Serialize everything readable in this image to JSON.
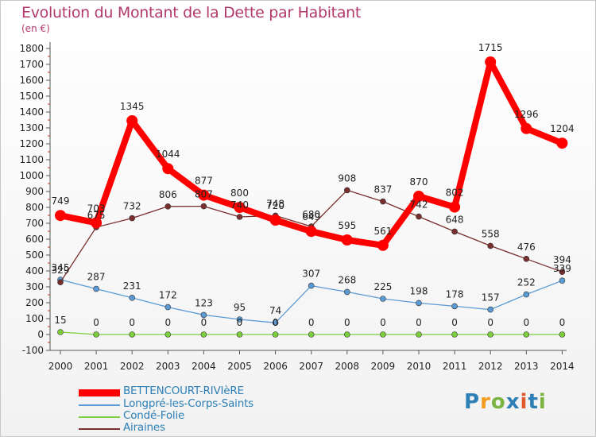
{
  "title": "Evolution du Montant de la Dette par Habitant",
  "subtitle": "(en €)",
  "logo_text": "Proxiti",
  "chart_data": {
    "type": "line",
    "title": "Evolution du Montant de la Dette par Habitant",
    "ylabel": "(en €)",
    "x": [
      "2000",
      "2001",
      "2002",
      "2003",
      "2004",
      "2005",
      "2006",
      "2007",
      "2008",
      "2009",
      "2010",
      "2011",
      "2012",
      "2013",
      "2014"
    ],
    "ylim": [
      -100,
      1800
    ],
    "yticks": [
      -100,
      0,
      100,
      200,
      300,
      400,
      500,
      600,
      700,
      800,
      900,
      1000,
      1100,
      1200,
      1300,
      1400,
      1500,
      1600,
      1700,
      1800
    ],
    "grid": false,
    "legend_position": "bottom-left",
    "series": [
      {
        "name": "BETTENCOURT-RIVIèRE",
        "color": "#ff0000",
        "values": [
          749,
          703,
          1345,
          1044,
          877,
          800,
          720,
          649,
          595,
          561,
          870,
          802,
          1715,
          1296,
          1204
        ]
      },
      {
        "name": "Longpré-les-Corps-Saints",
        "color": "#5b9bd5",
        "values": [
          345,
          287,
          231,
          172,
          123,
          95,
          74,
          307,
          268,
          225,
          198,
          178,
          157,
          252,
          339
        ]
      },
      {
        "name": "Condé-Folie",
        "color": "#7ccf3c",
        "values": [
          15,
          0,
          0,
          0,
          0,
          0,
          0,
          0,
          0,
          0,
          0,
          0,
          0,
          0,
          0
        ]
      },
      {
        "name": "Airaines",
        "color": "#7a2e2e",
        "values": [
          329,
          675,
          732,
          806,
          807,
          740,
          748,
          680,
          908,
          837,
          742,
          648,
          558,
          476,
          394
        ]
      }
    ]
  }
}
